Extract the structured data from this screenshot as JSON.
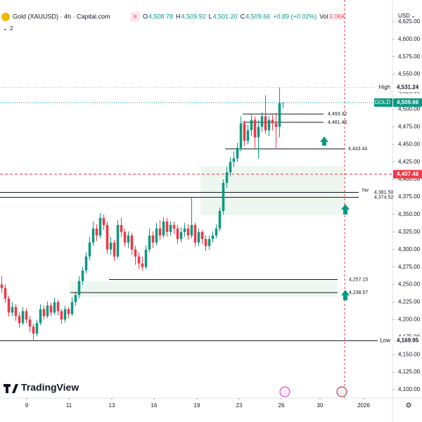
{
  "header": {
    "title": "Gold (XAUUSD) · 4h · Capital.com",
    "ohlc": [
      {
        "key": "O",
        "value": "4,508.78"
      },
      {
        "key": "H",
        "value": "4,509.92"
      },
      {
        "key": "L",
        "value": "4,501.20"
      },
      {
        "key": "C",
        "value": "4,509.66"
      }
    ],
    "change": "+0.89 (+0.02%)",
    "vol_key": "Vol",
    "vol": "3.06K",
    "indicator_count": "2",
    "currency": "USD"
  },
  "logo": "TradingView",
  "chart_data": {
    "type": "candlestick",
    "up_color": "#089981",
    "down_color": "#f23645",
    "ylim": [
      4089,
      4656
    ],
    "yticks": [
      {
        "value": 4100,
        "label": "4,100.00"
      },
      {
        "value": 4125,
        "label": "4,125.00"
      },
      {
        "value": 4150,
        "label": "4,150.00"
      },
      {
        "value": 4175,
        "label": "4,175.00"
      },
      {
        "value": 4200,
        "label": "4,200.00"
      },
      {
        "value": 4225,
        "label": "4,225.00"
      },
      {
        "value": 4250,
        "label": "4,250.00"
      },
      {
        "value": 4275,
        "label": "4,275.00"
      },
      {
        "value": 4300,
        "label": "4,300.00"
      },
      {
        "value": 4325,
        "label": "4,325.00"
      },
      {
        "value": 4350,
        "label": "4,350.00"
      },
      {
        "value": 4375,
        "label": "4,375.00"
      },
      {
        "value": 4400,
        "label": "4,400.00"
      },
      {
        "value": 4425,
        "label": "4,425.00"
      },
      {
        "value": 4450,
        "label": "4,450.00"
      },
      {
        "value": 4475,
        "label": "4,475.00"
      },
      {
        "value": 4500,
        "label": "4,500.00"
      },
      {
        "value": 4525,
        "label": "4,525.00"
      },
      {
        "value": 4550,
        "label": "4,550.00"
      },
      {
        "value": 4575,
        "label": "4,575.00"
      },
      {
        "value": 4600,
        "label": "4,600.00"
      },
      {
        "value": 4625,
        "label": "4,625.00"
      }
    ],
    "xlim": [
      0,
      111.6
    ],
    "xticks": [
      {
        "value": 7.6,
        "label": "9"
      },
      {
        "value": 19.6,
        "label": "11"
      },
      {
        "value": 31.8,
        "label": "13"
      },
      {
        "value": 43.8,
        "label": "16"
      },
      {
        "value": 56,
        "label": "19"
      },
      {
        "value": 68,
        "label": "23"
      },
      {
        "value": 80,
        "label": "26"
      },
      {
        "value": 91,
        "label": "30"
      },
      {
        "value": 103.4,
        "label": "2026"
      }
    ],
    "open": [
      4250,
      4245,
      4230,
      4210,
      4218,
      4205,
      4195,
      4212,
      4200,
      4190,
      4180,
      4195,
      4215,
      4205,
      4220,
      4210,
      4225,
      4212,
      4200,
      4215,
      4208,
      4225,
      4235,
      4255,
      4270,
      4290,
      4310,
      4330,
      4320,
      4345,
      4335,
      4300,
      4310,
      4290,
      4335,
      4325,
      4310,
      4320,
      4300,
      4290,
      4280,
      4275,
      4300,
      4320,
      4310,
      4330,
      4320,
      4340,
      4325,
      4335,
      4330,
      4315,
      4325,
      4330,
      4320,
      4335,
      4310,
      4325,
      4315,
      4305,
      4315,
      4320,
      4330,
      4355,
      4395,
      4410,
      4425,
      4430,
      4445,
      4480,
      4455,
      4470,
      4485,
      4460,
      4475,
      4490,
      4470,
      4485,
      4480,
      4475,
      4508.78
    ],
    "high": [
      4262,
      4250,
      4234,
      4225,
      4222,
      4210,
      4218,
      4216,
      4205,
      4194,
      4200,
      4222,
      4220,
      4226,
      4224,
      4231,
      4228,
      4215,
      4220,
      4218,
      4232,
      4240,
      4262,
      4275,
      4296,
      4318,
      4340,
      4336,
      4352,
      4350,
      4340,
      4318,
      4314,
      4342,
      4345,
      4330,
      4326,
      4324,
      4305,
      4296,
      4290,
      4306,
      4330,
      4326,
      4338,
      4342,
      4346,
      4345,
      4340,
      4340,
      4335,
      4332,
      4338,
      4336,
      4374.52,
      4338,
      4330,
      4328,
      4320,
      4320,
      4326,
      4336,
      4360,
      4400,
      4418,
      4432,
      4440,
      4452,
      4490,
      4484,
      4478,
      4492,
      4490,
      4485,
      4496,
      4520,
      4490,
      4492,
      4495,
      4531.24,
      4509.92
    ],
    "low": [
      4238,
      4224,
      4204,
      4205,
      4198,
      4188,
      4192,
      4195,
      4182,
      4169.95,
      4176,
      4192,
      4200,
      4202,
      4205,
      4207,
      4206,
      4194,
      4196,
      4202,
      4205,
      4220,
      4230,
      4250,
      4266,
      4285,
      4305,
      4312,
      4316,
      4328,
      4294,
      4292,
      4284,
      4287,
      4318,
      4304,
      4302,
      4292,
      4278,
      4272,
      4270,
      4272,
      4296,
      4302,
      4306,
      4314,
      4316,
      4318,
      4320,
      4322,
      4308,
      4310,
      4318,
      4314,
      4316,
      4304,
      4305,
      4308,
      4298,
      4300,
      4310,
      4316,
      4326,
      4350,
      4388,
      4404,
      4418,
      4425,
      4440,
      4448,
      4450,
      4462,
      4445,
      4430,
      4468,
      4465,
      4462,
      4470,
      4445,
      4460,
      4501.2
    ],
    "close": [
      4245,
      4230,
      4210,
      4218,
      4205,
      4195,
      4212,
      4200,
      4190,
      4180,
      4195,
      4215,
      4205,
      4220,
      4210,
      4225,
      4212,
      4200,
      4215,
      4208,
      4225,
      4235,
      4255,
      4270,
      4290,
      4310,
      4330,
      4320,
      4345,
      4335,
      4300,
      4310,
      4290,
      4335,
      4325,
      4310,
      4320,
      4300,
      4290,
      4280,
      4275,
      4300,
      4320,
      4310,
      4330,
      4320,
      4340,
      4325,
      4335,
      4330,
      4315,
      4325,
      4330,
      4320,
      4335,
      4310,
      4325,
      4315,
      4305,
      4315,
      4320,
      4330,
      4355,
      4395,
      4410,
      4425,
      4430,
      4445,
      4480,
      4455,
      4470,
      4485,
      4460,
      4475,
      4490,
      4470,
      4485,
      4480,
      4475,
      4508.78,
      4509.66
    ],
    "levels": [
      {
        "value": 4531.24,
        "label": "4,531.24",
        "tag": "High",
        "color": "#b2b5be"
      },
      {
        "value": 4509.66,
        "label": "4,509.66",
        "tag": "GOLD",
        "color": "#089981"
      },
      {
        "value": 4493.32,
        "label": "4,493.32",
        "color": "#131722"
      },
      {
        "value": 4481.46,
        "label": "4,481.46",
        "color": "#131722"
      },
      {
        "value": 4443.44,
        "label": "4,443.44",
        "color": "#131722"
      },
      {
        "value": 4407.48,
        "label": "4,407.48",
        "color": "#f23645"
      },
      {
        "value": 4381.5,
        "label": "4,381.50",
        "note": "hw",
        "color": "#131722"
      },
      {
        "value": 4374.52,
        "label": "4,374.52",
        "color": "#131722"
      },
      {
        "value": 4257.15,
        "label": "4,257.15",
        "color": "#131722"
      },
      {
        "value": 4238.57,
        "label": "4,238.57",
        "color": "#131722"
      },
      {
        "value": 4169.95,
        "label": "4,169.95",
        "tag": "Low",
        "color": "#131722"
      }
    ]
  }
}
